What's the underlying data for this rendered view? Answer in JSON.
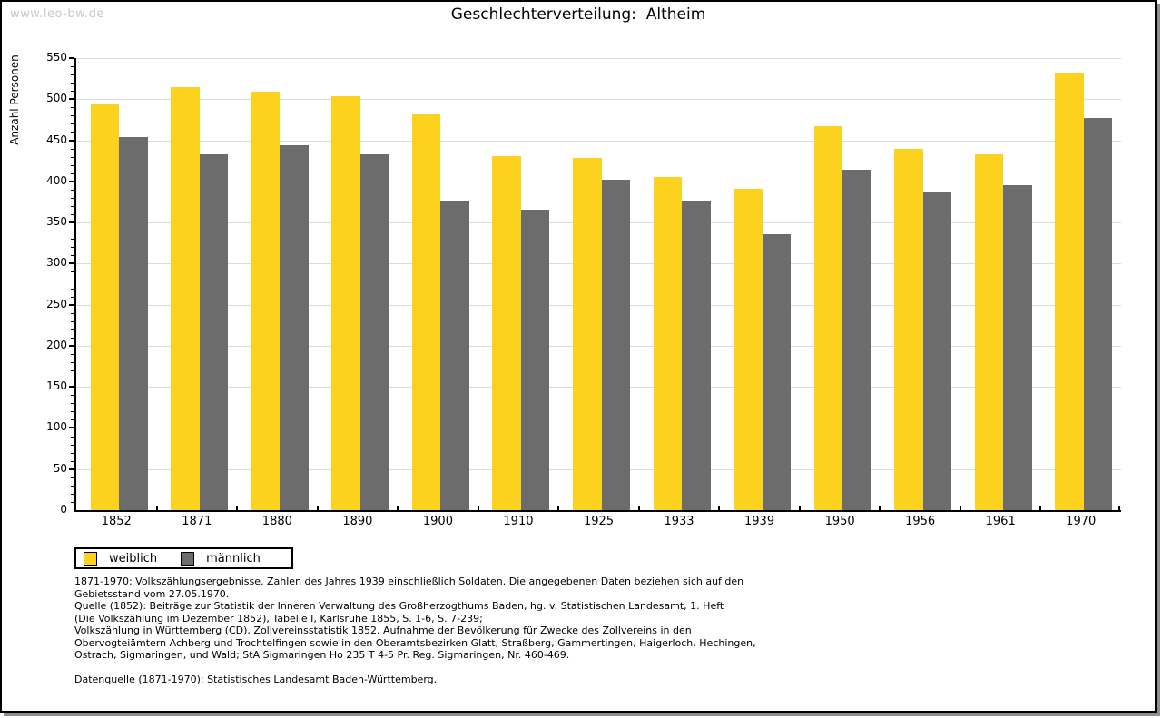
{
  "watermark": "www.leo-bw.de",
  "title": "Geschlechterverteilung:  Altheim",
  "chart_data": {
    "type": "bar",
    "title": "Geschlechterverteilung: Altheim",
    "xlabel": "",
    "ylabel": "Anzahl Personen",
    "ylim": [
      0,
      550
    ],
    "ytick_step": 50,
    "minor_tick_step": 10,
    "grid": true,
    "legend_position": "bottom-left",
    "categories": [
      "1852",
      "1871",
      "1880",
      "1890",
      "1900",
      "1910",
      "1925",
      "1933",
      "1939",
      "1950",
      "1956",
      "1961",
      "1970"
    ],
    "series": [
      {
        "name": "weiblich",
        "color": "#fcd21f",
        "values": [
          494,
          515,
          509,
          504,
          481,
          431,
          428,
          405,
          391,
          467,
          440,
          433,
          532
        ]
      },
      {
        "name": "männlich",
        "color": "#6c6c6c",
        "values": [
          454,
          433,
          444,
          433,
          377,
          366,
          402,
          377,
          336,
          414,
          388,
          395,
          477
        ]
      }
    ]
  },
  "legend": {
    "items": [
      {
        "label": "weiblich",
        "color": "#fcd21f"
      },
      {
        "label": "männlich",
        "color": "#6c6c6c"
      }
    ]
  },
  "footnotes": {
    "lines": [
      "1871-1970: Volkszählungsergebnisse. Zahlen des Jahres 1939 einschließlich Soldaten. Die angegebenen Daten beziehen sich auf den",
      "Gebietsstand vom 27.05.1970.",
      "Quelle (1852): Beiträge zur Statistik der Inneren Verwaltung des Großherzogthums Baden, hg. v. Statistischen Landesamt, 1. Heft",
      "(Die Volkszählung im Dezember 1852), Tabelle I, Karlsruhe 1855, S. 1-6, S. 7-239;",
      "Volkszählung in Württemberg (CD), Zollvereinsstatistik 1852. Aufnahme der Bevölkerung für Zwecke des Zollvereins in den",
      "Obervogteiämtern Achberg und Trochtelfingen sowie in den Oberamtsbezirken Glatt, Straßberg, Gammertingen, Haigerloch, Hechingen,",
      "Ostrach, Sigmaringen, und Wald; StA Sigmaringen Ho 235 T 4-5 Pr. Reg. Sigmaringen, Nr. 460-469."
    ]
  },
  "datasource": "Datenquelle (1871-1970): Statistisches Landesamt Baden-Württemberg."
}
